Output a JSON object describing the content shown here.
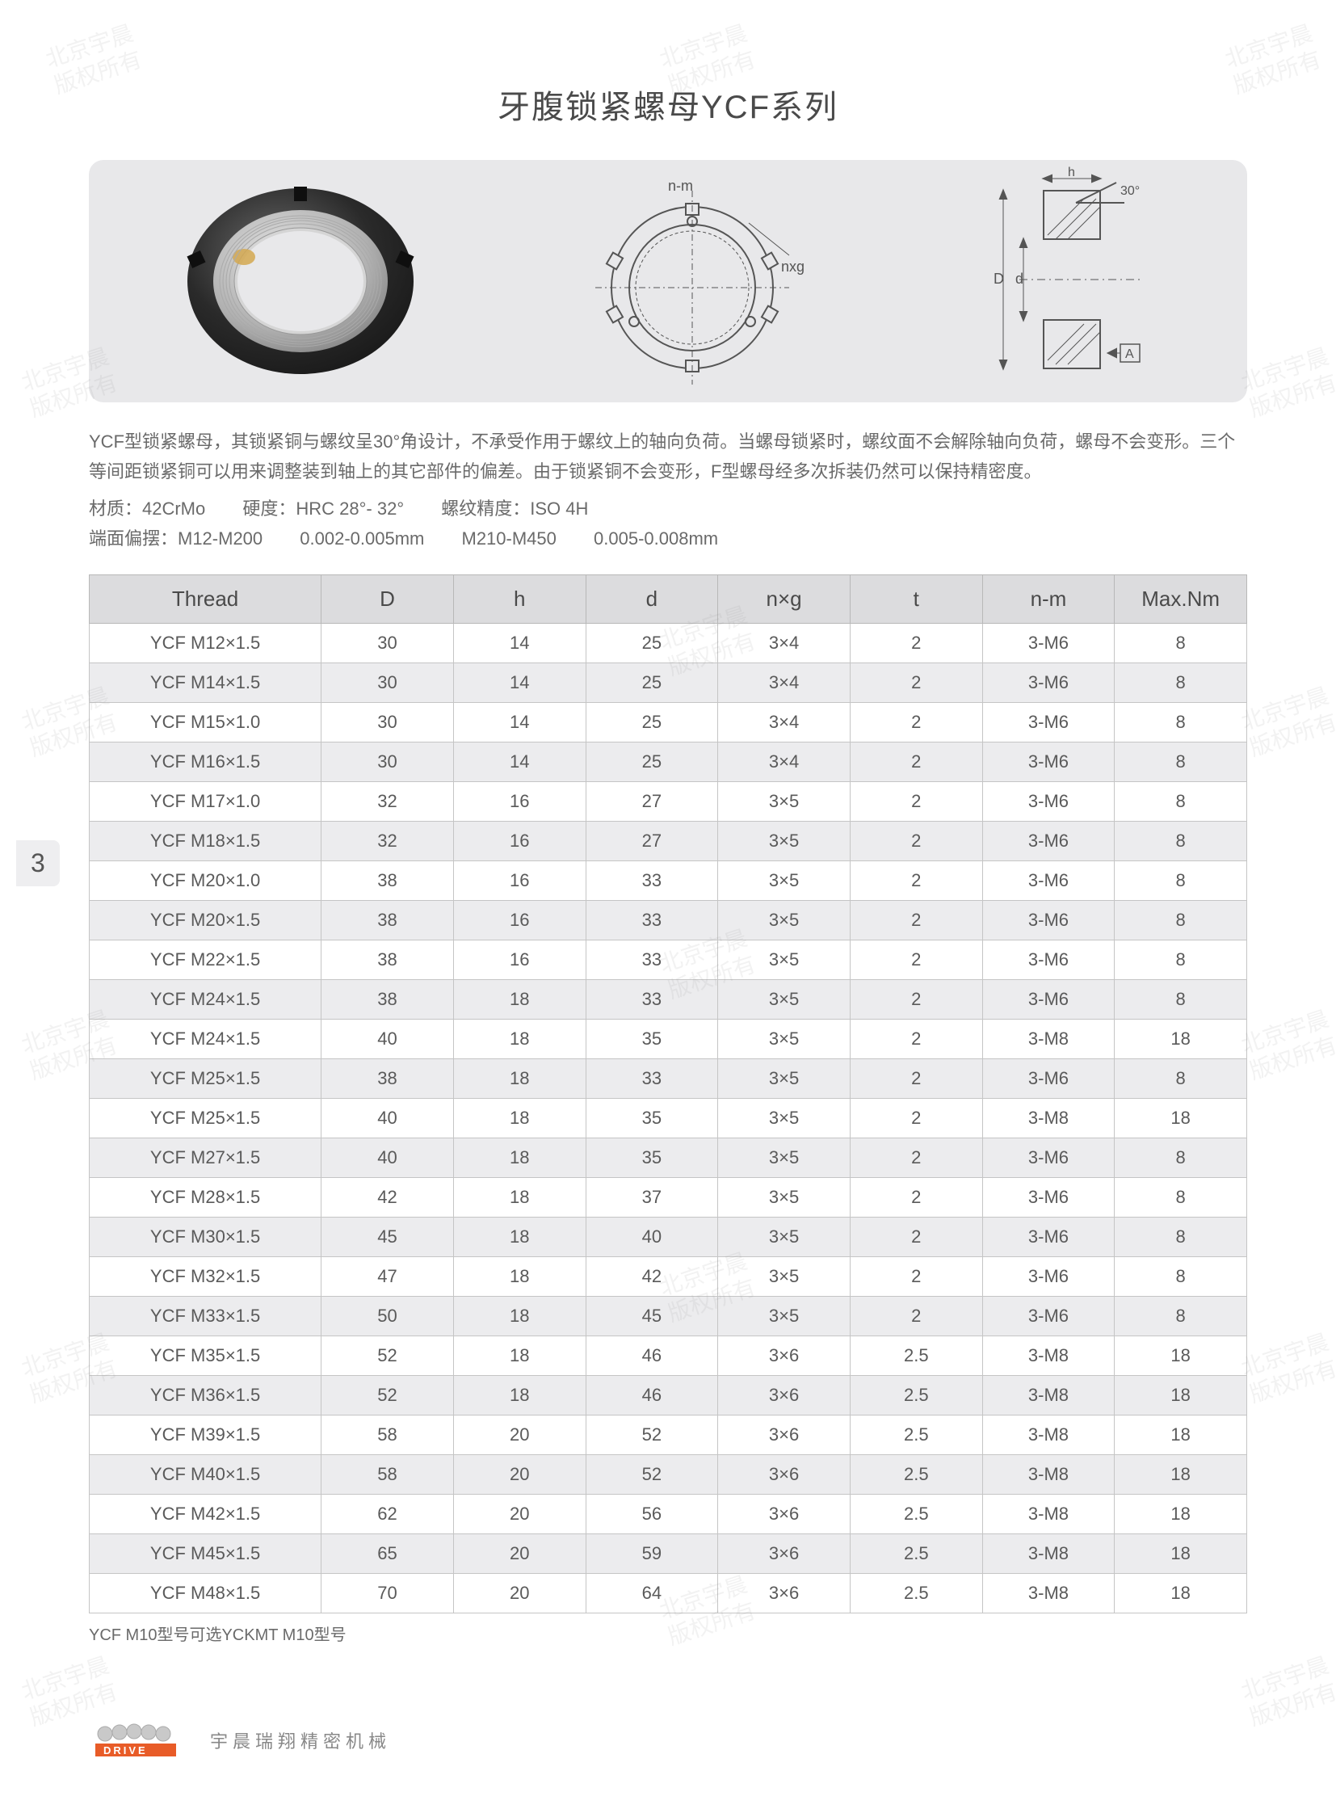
{
  "title": "牙腹锁紧螺母YCF系列",
  "page_number": "3",
  "diagram_labels": {
    "nm": "n-m",
    "nxg": "nxg",
    "h": "h",
    "angle": "30°",
    "D": "D",
    "d": "d",
    "A": "A"
  },
  "description": "YCF型锁紧螺母，其锁紧铜与螺纹呈30°角设计，不承受作用于螺纹上的轴向负荷。当螺母锁紧时，螺纹面不会解除轴向负荷，螺母不会变形。三个等间距锁紧铜可以用来调整装到轴上的其它部件的偏差。由于锁紧铜不会变形，F型螺母经多次拆装仍然可以保持精密度。",
  "spec1_a": "材质：42CrMo",
  "spec1_b": "硬度：HRC 28°- 32°",
  "spec1_c": "螺纹精度：ISO 4H",
  "spec2_a": "端面偏摆：M12-M200",
  "spec2_b": "0.002-0.005mm",
  "spec2_c": "M210-M450",
  "spec2_d": "0.005-0.008mm",
  "table": {
    "columns": [
      "Thread",
      "D",
      "h",
      "d",
      "n×g",
      "t",
      "n-m",
      "Max.Nm"
    ],
    "rows": [
      [
        "YCF M12×1.5",
        "30",
        "14",
        "25",
        "3×4",
        "2",
        "3-M6",
        "8"
      ],
      [
        "YCF M14×1.5",
        "30",
        "14",
        "25",
        "3×4",
        "2",
        "3-M6",
        "8"
      ],
      [
        "YCF M15×1.0",
        "30",
        "14",
        "25",
        "3×4",
        "2",
        "3-M6",
        "8"
      ],
      [
        "YCF M16×1.5",
        "30",
        "14",
        "25",
        "3×4",
        "2",
        "3-M6",
        "8"
      ],
      [
        "YCF M17×1.0",
        "32",
        "16",
        "27",
        "3×5",
        "2",
        "3-M6",
        "8"
      ],
      [
        "YCF M18×1.5",
        "32",
        "16",
        "27",
        "3×5",
        "2",
        "3-M6",
        "8"
      ],
      [
        "YCF M20×1.0",
        "38",
        "16",
        "33",
        "3×5",
        "2",
        "3-M6",
        "8"
      ],
      [
        "YCF M20×1.5",
        "38",
        "16",
        "33",
        "3×5",
        "2",
        "3-M6",
        "8"
      ],
      [
        "YCF M22×1.5",
        "38",
        "16",
        "33",
        "3×5",
        "2",
        "3-M6",
        "8"
      ],
      [
        "YCF M24×1.5",
        "38",
        "18",
        "33",
        "3×5",
        "2",
        "3-M6",
        "8"
      ],
      [
        "YCF M24×1.5",
        "40",
        "18",
        "35",
        "3×5",
        "2",
        "3-M8",
        "18"
      ],
      [
        "YCF M25×1.5",
        "38",
        "18",
        "33",
        "3×5",
        "2",
        "3-M6",
        "8"
      ],
      [
        "YCF M25×1.5",
        "40",
        "18",
        "35",
        "3×5",
        "2",
        "3-M8",
        "18"
      ],
      [
        "YCF M27×1.5",
        "40",
        "18",
        "35",
        "3×5",
        "2",
        "3-M6",
        "8"
      ],
      [
        "YCF M28×1.5",
        "42",
        "18",
        "37",
        "3×5",
        "2",
        "3-M6",
        "8"
      ],
      [
        "YCF M30×1.5",
        "45",
        "18",
        "40",
        "3×5",
        "2",
        "3-M6",
        "8"
      ],
      [
        "YCF M32×1.5",
        "47",
        "18",
        "42",
        "3×5",
        "2",
        "3-M6",
        "8"
      ],
      [
        "YCF M33×1.5",
        "50",
        "18",
        "45",
        "3×5",
        "2",
        "3-M6",
        "8"
      ],
      [
        "YCF M35×1.5",
        "52",
        "18",
        "46",
        "3×6",
        "2.5",
        "3-M8",
        "18"
      ],
      [
        "YCF M36×1.5",
        "52",
        "18",
        "46",
        "3×6",
        "2.5",
        "3-M8",
        "18"
      ],
      [
        "YCF M39×1.5",
        "58",
        "20",
        "52",
        "3×6",
        "2.5",
        "3-M8",
        "18"
      ],
      [
        "YCF M40×1.5",
        "58",
        "20",
        "52",
        "3×6",
        "2.5",
        "3-M8",
        "18"
      ],
      [
        "YCF M42×1.5",
        "62",
        "20",
        "56",
        "3×6",
        "2.5",
        "3-M8",
        "18"
      ],
      [
        "YCF M45×1.5",
        "65",
        "20",
        "59",
        "3×6",
        "2.5",
        "3-M8",
        "18"
      ],
      [
        "YCF M48×1.5",
        "70",
        "20",
        "64",
        "3×6",
        "2.5",
        "3-M8",
        "18"
      ]
    ]
  },
  "footnote": "YCF M10型号可选YCKMT M10型号",
  "footer_brand": "DRIVE",
  "footer_text": "宇晨瑞翔精密机械",
  "watermark_text": "北京宇晨\n版权所有",
  "colors": {
    "panel_bg": "#e8e8ea",
    "header_bg": "#dcdcde",
    "row_alt_bg": "#ececee",
    "border": "#c5c5c5",
    "text": "#595959"
  }
}
